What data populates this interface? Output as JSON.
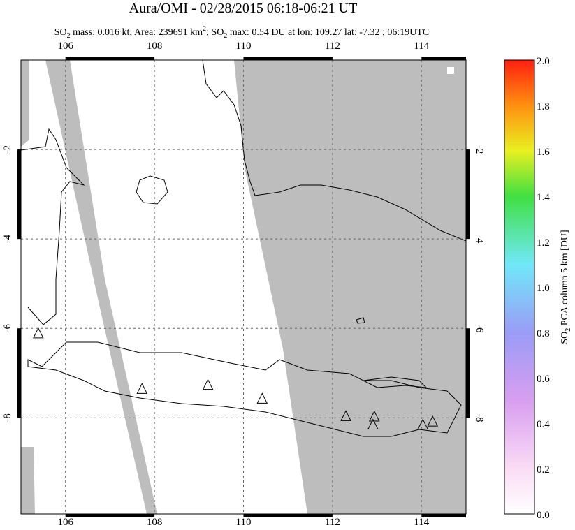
{
  "chart_data": {
    "type": "map",
    "title": "Aura/OMI - 02/28/2015 06:18-06:21 UT",
    "subtitle_parts": [
      "SO",
      "2",
      " mass: 0.016 kt; Area: 239691 km",
      "2",
      "; SO",
      "2",
      " max: 0.54 DU at lon: 109.27 lat: -7.32 ; 06:19UTC"
    ],
    "xlim": [
      105,
      115
    ],
    "ylim": [
      -10.15,
      0
    ],
    "xticks": [
      106,
      108,
      110,
      112,
      114
    ],
    "yticks": [
      -2,
      -4,
      -6,
      -8
    ],
    "grid": true,
    "volcanoes": {
      "lon": [
        105.39,
        107.72,
        109.2,
        110.42,
        112.3,
        112.94,
        112.91,
        114.03,
        114.25
      ],
      "lat": [
        -6.12,
        -7.36,
        -7.27,
        -7.58,
        -7.97,
        -7.98,
        -8.16,
        -8.16,
        -8.09
      ]
    },
    "colorbar": {
      "label_parts": [
        "SO",
        "2",
        " PCA column 5 km [DU]"
      ],
      "clim": [
        0,
        2
      ],
      "ticks": [
        {
          "value": 0,
          "label": "0.0"
        },
        {
          "value": 0.2,
          "label": "0.2"
        },
        {
          "value": 0.4,
          "label": "0.4"
        },
        {
          "value": 0.6,
          "label": "0.6"
        },
        {
          "value": 0.8,
          "label": "0.8"
        },
        {
          "value": 1,
          "label": "1.0"
        },
        {
          "value": 1.2,
          "label": "1.2"
        },
        {
          "value": 1.4,
          "label": "1.4"
        },
        {
          "value": 1.6,
          "label": "1.6"
        },
        {
          "value": 1.8,
          "label": "1.8"
        },
        {
          "value": 2,
          "label": "2.0"
        }
      ]
    }
  }
}
